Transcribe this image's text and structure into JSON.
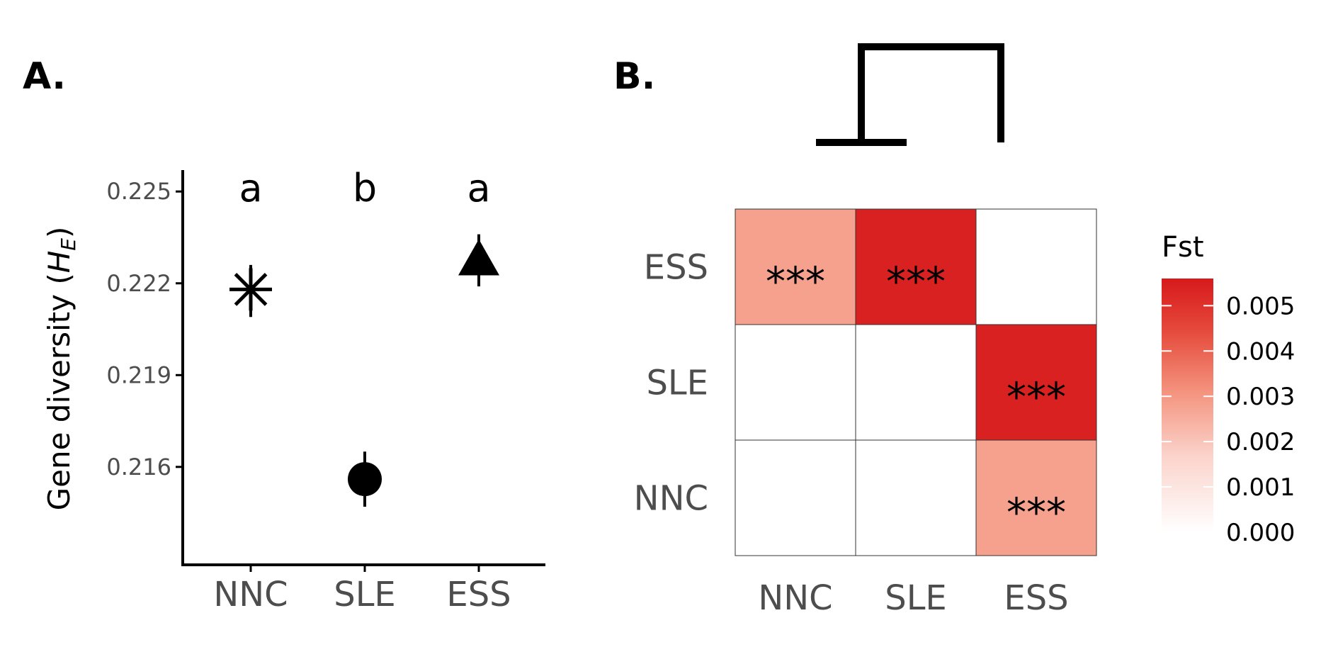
{
  "panels": {
    "a_label": "A.",
    "b_label": "B."
  },
  "chart_data": [
    {
      "type": "scatter",
      "panel": "A.",
      "ylabel_main": "Gene diversity (",
      "ylabel_symbol": "H",
      "ylabel_sub": "E",
      "ylabel_close": ")",
      "xlabel": "",
      "ylim": [
        0.2128,
        0.2257
      ],
      "yticks": [
        {
          "value": 0.216,
          "label": "0.216"
        },
        {
          "value": 0.219,
          "label": "0.219"
        },
        {
          "value": 0.222,
          "label": "0.222"
        },
        {
          "value": 0.225,
          "label": "0.225"
        }
      ],
      "categories": [
        "NNC",
        "SLE",
        "ESS"
      ],
      "points": [
        {
          "category": "NNC",
          "y": 0.2218,
          "lower": 0.2209,
          "upper": 0.2226,
          "shape": "asterisk",
          "group_letter": "a"
        },
        {
          "category": "SLE",
          "y": 0.2156,
          "lower": 0.2147,
          "upper": 0.2165,
          "shape": "circle",
          "group_letter": "b"
        },
        {
          "category": "ESS",
          "y": 0.2227,
          "lower": 0.2219,
          "upper": 0.2236,
          "shape": "triangle",
          "group_letter": "a"
        }
      ]
    },
    {
      "type": "heatmap",
      "panel": "B.",
      "x_categories": [
        "NNC",
        "SLE",
        "ESS"
      ],
      "y_categories": [
        "NNC",
        "SLE",
        "ESS"
      ],
      "cells": [
        {
          "x": "NNC",
          "y": "ESS",
          "value": 0.0028,
          "label": "***"
        },
        {
          "x": "SLE",
          "y": "ESS",
          "value": 0.0054,
          "label": "***"
        },
        {
          "x": "ESS",
          "y": "SLE",
          "value": 0.0054,
          "label": "***"
        },
        {
          "x": "ESS",
          "y": "NNC",
          "value": 0.0028,
          "label": "***"
        }
      ],
      "legend": {
        "title": "Fst",
        "placement": "right",
        "min": 0.0,
        "max": 0.0056,
        "low_color": "#ffffff",
        "high_color": "#d7191c",
        "ticks": [
          {
            "value": 0.0,
            "label": "0.000"
          },
          {
            "value": 0.001,
            "label": "0.001"
          },
          {
            "value": 0.002,
            "label": "0.002"
          },
          {
            "value": 0.003,
            "label": "0.003"
          },
          {
            "value": 0.004,
            "label": "0.004"
          },
          {
            "value": 0.005,
            "label": "0.005"
          }
        ]
      },
      "dendrogram": {
        "tips": [
          "NNC",
          "SLE",
          "ESS"
        ],
        "merges": [
          [
            "NNC",
            "SLE"
          ],
          [
            "NNC-SLE",
            "ESS"
          ]
        ]
      }
    }
  ],
  "colors": {
    "heat_high": "#d7191c",
    "heat_mid": "#f07c6b",
    "axis": "#000000",
    "tick_text": "#4d4d4d"
  }
}
